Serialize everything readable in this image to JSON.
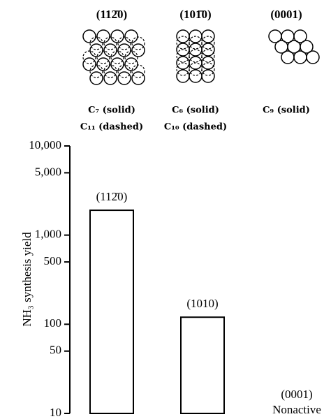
{
  "surfaces": [
    {
      "label": "(112̄0)",
      "captions": [
        "C₇ (solid)",
        "C₁₁ (dashed)"
      ]
    },
    {
      "label": "(101̄0)",
      "captions": [
        "C₆ (solid)",
        "C₁₀ (dashed)"
      ]
    },
    {
      "label": "(0001)",
      "captions": [
        "C₉ (solid)"
      ]
    }
  ],
  "chart_data": {
    "type": "bar",
    "y_label": "NH₃ synthesis yield",
    "categories": [
      "(112̄0)",
      "(1010)",
      "(0001)"
    ],
    "values": [
      1900,
      120,
      null
    ],
    "annotations": [
      "Nonactive"
    ],
    "color": "#ffffff",
    "log_scale": true,
    "ylim": [
      10,
      10000
    ],
    "yticks": [
      {
        "value": 10000,
        "label": "10,000"
      },
      {
        "value": 5000,
        "label": "5,000"
      },
      {
        "value": 1000,
        "label": "1,000"
      },
      500,
      100,
      50,
      10
    ]
  }
}
